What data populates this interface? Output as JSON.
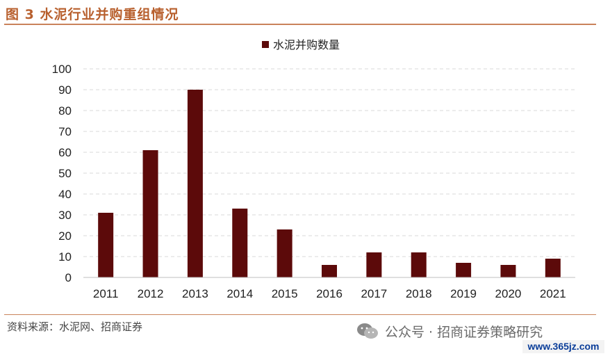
{
  "figure": {
    "title": "图 3  水泥行业并购重组情况",
    "source": "资料来源：水泥网、招商证券"
  },
  "watermark": {
    "text": "公众号 · 招商证券策略研究",
    "icon": "wechat-icon",
    "site": "www.365jz.com"
  },
  "colors": {
    "bar": "#5c0a0a",
    "title": "#b8602e",
    "rule": "#c9825a",
    "grid": "#d9d9d9"
  },
  "chart_data": {
    "type": "bar",
    "title": "",
    "xlabel": "",
    "ylabel": "",
    "categories": [
      "2011",
      "2012",
      "2013",
      "2014",
      "2015",
      "2016",
      "2017",
      "2018",
      "2019",
      "2020",
      "2021"
    ],
    "series": [
      {
        "name": "水泥并购数量",
        "values": [
          31,
          61,
          90,
          33,
          23,
          6,
          12,
          12,
          7,
          6,
          9
        ]
      }
    ],
    "ylim": [
      0,
      100
    ],
    "yticks": [
      0,
      10,
      20,
      30,
      40,
      50,
      60,
      70,
      80,
      90,
      100
    ],
    "grid": true,
    "legend_position": "top-center"
  }
}
